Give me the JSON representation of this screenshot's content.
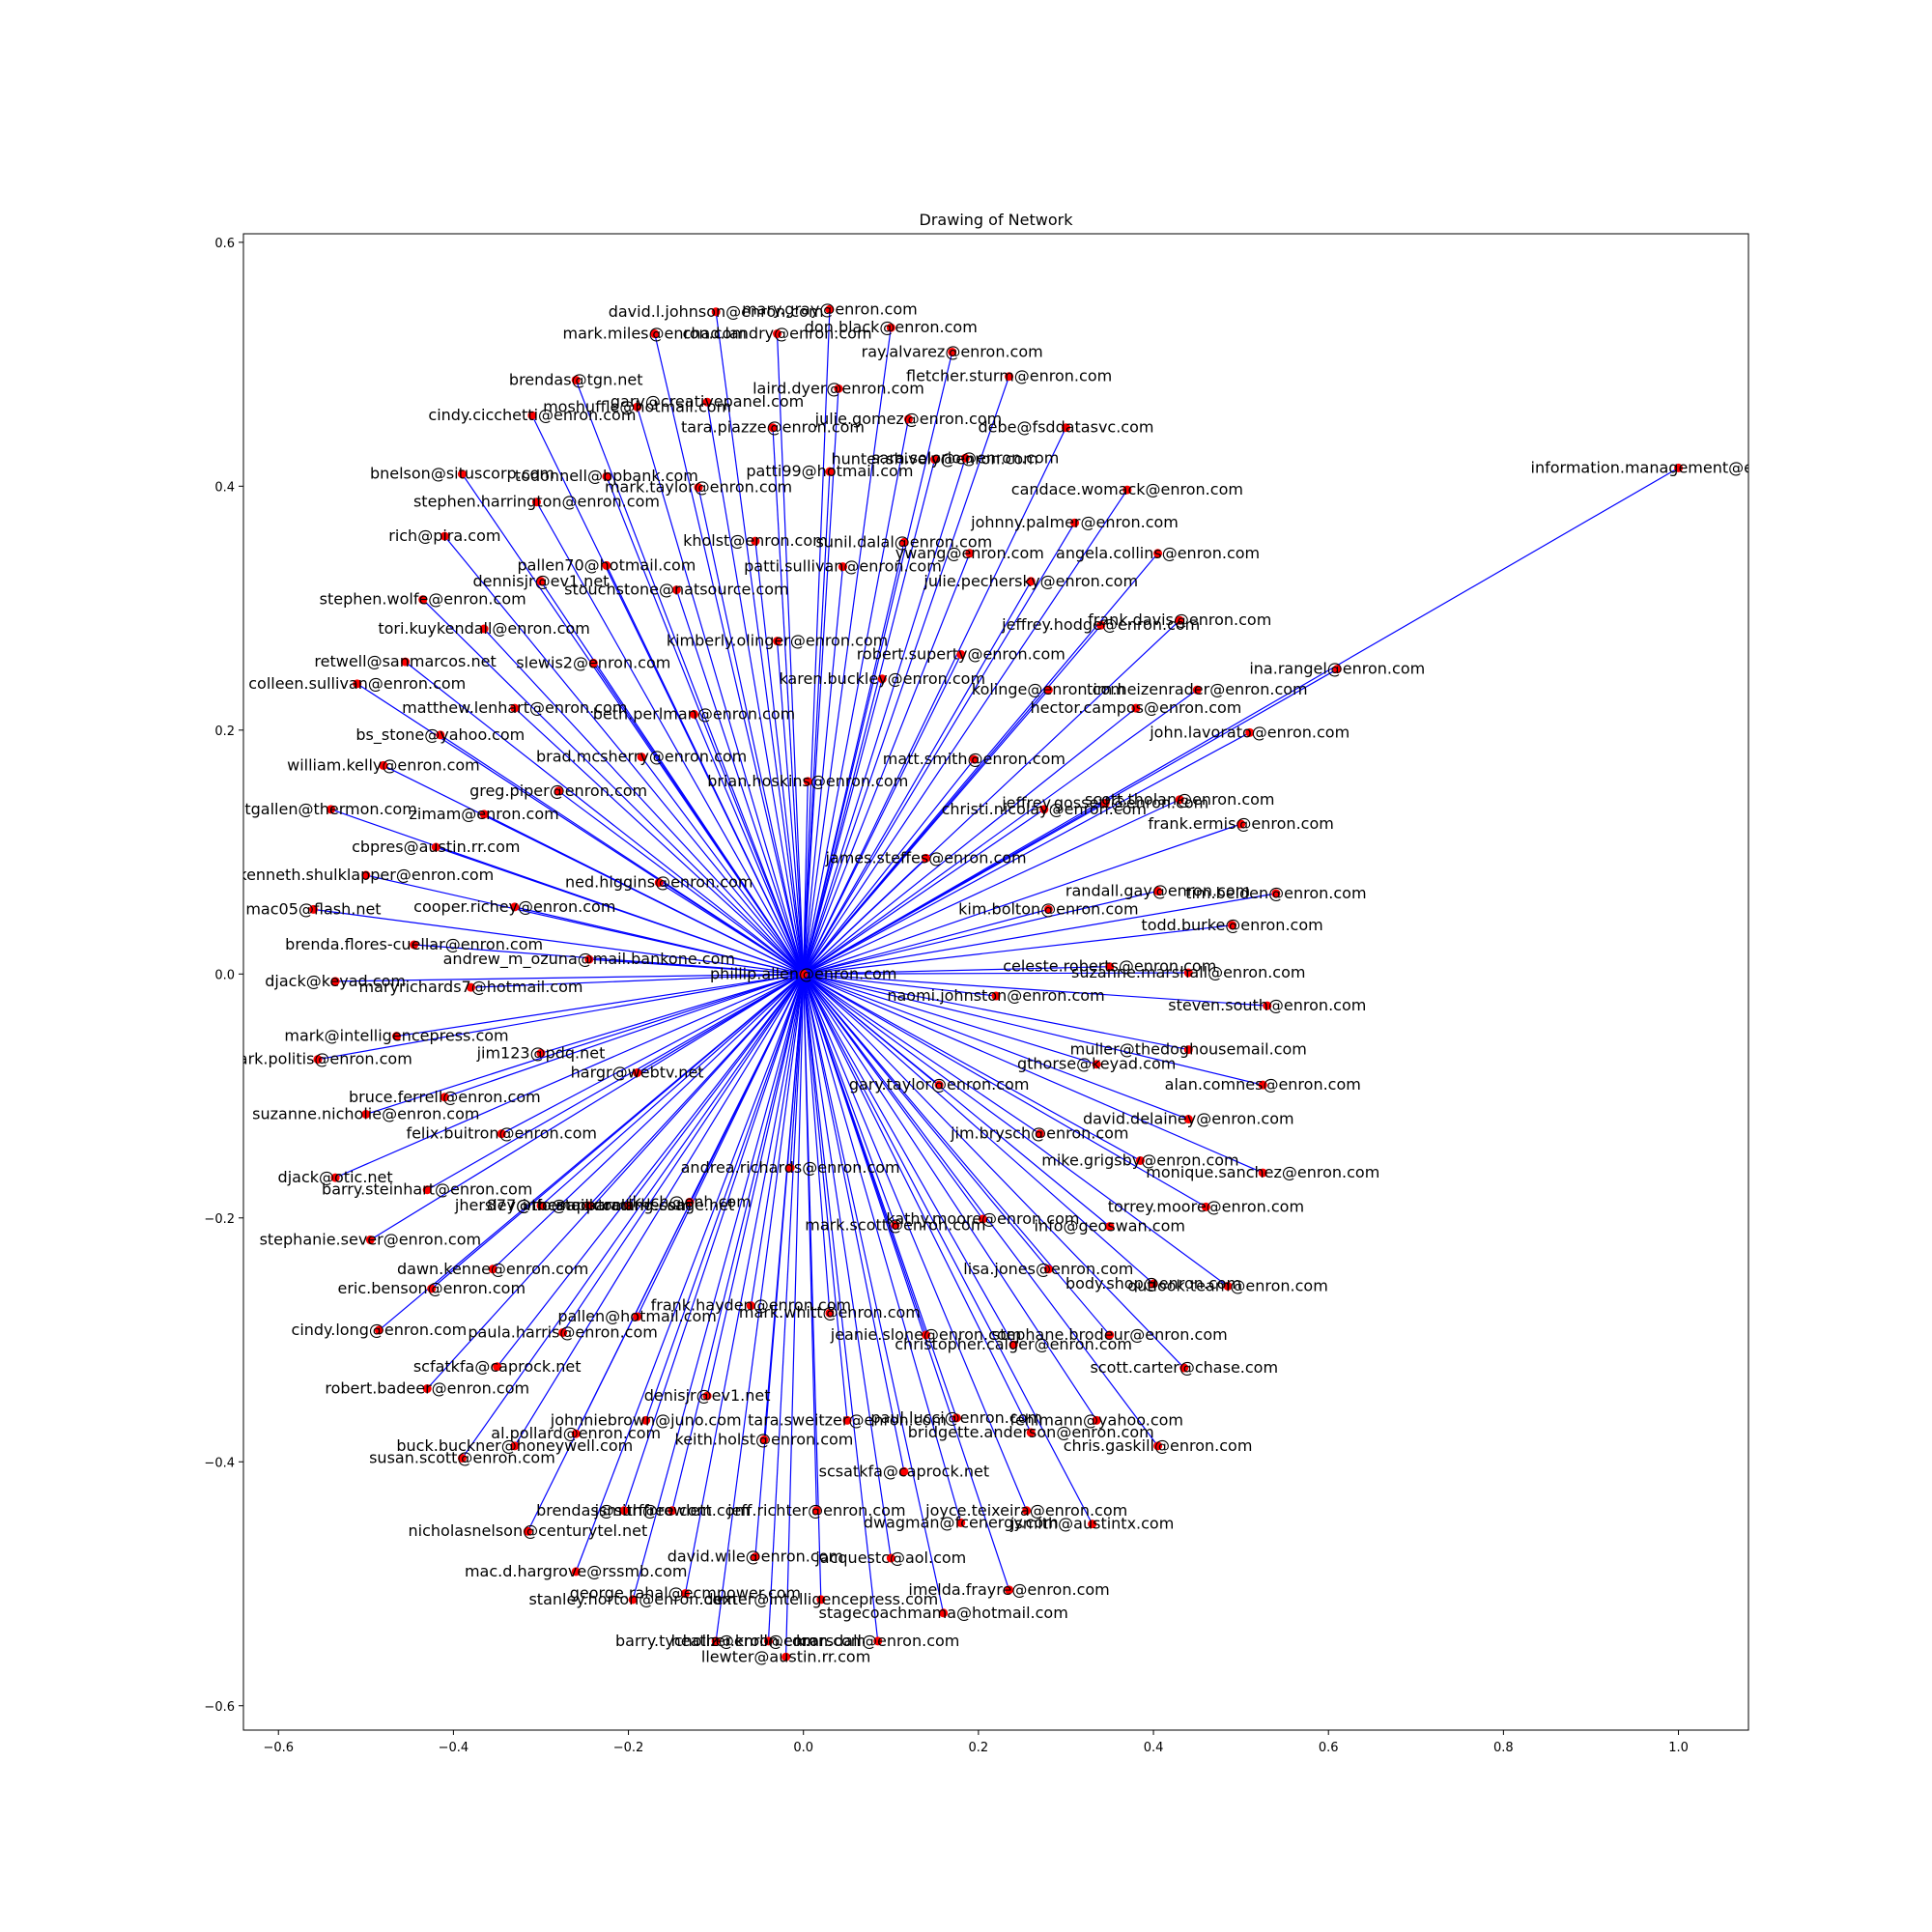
{
  "chart_data": {
    "type": "network",
    "title": "Drawing of Network",
    "xlim": [
      -0.64,
      1.08
    ],
    "ylim": [
      -0.62,
      0.607
    ],
    "x_ticks": [
      -0.6,
      -0.4,
      -0.2,
      0.0,
      0.2,
      0.4,
      0.6,
      0.8,
      1.0
    ],
    "x_tick_labels": [
      "−0.6",
      "−0.4",
      "−0.2",
      "0.0",
      "0.2",
      "0.4",
      "0.6",
      "0.8",
      "1.0"
    ],
    "y_ticks": [
      -0.6,
      -0.4,
      -0.2,
      0.0,
      0.2,
      0.4,
      0.6
    ],
    "y_tick_labels": [
      "−0.6",
      "−0.4",
      "−0.2",
      "0.0",
      "0.2",
      "0.4",
      "0.6"
    ],
    "grid": false,
    "node_color": "#ff0000",
    "edge_color": "#0000ff",
    "center": {
      "label": "phillip.allen@enron.com",
      "x": 0.0,
      "y": 0.0
    },
    "nodes": [
      {
        "label": "david.l.johnson@enron.com",
        "x": -0.1,
        "y": 0.543
      },
      {
        "label": "mary.gray@enron.com",
        "x": 0.03,
        "y": 0.545
      },
      {
        "label": "mark.miles@enron.com",
        "x": -0.17,
        "y": 0.525
      },
      {
        "label": "chad.landry@enron.com",
        "x": -0.03,
        "y": 0.525
      },
      {
        "label": "don.black@enron.com",
        "x": 0.1,
        "y": 0.53
      },
      {
        "label": "ray.alvarez@enron.com",
        "x": 0.17,
        "y": 0.51
      },
      {
        "label": "brendas@tgn.net",
        "x": -0.26,
        "y": 0.487
      },
      {
        "label": "fletcher.sturm@enron.com",
        "x": 0.235,
        "y": 0.49
      },
      {
        "label": "laird.dyer@enron.com",
        "x": 0.04,
        "y": 0.48
      },
      {
        "label": "gary@creativepanel.com",
        "x": -0.11,
        "y": 0.469
      },
      {
        "label": "moshuffle@hotmail.com",
        "x": -0.19,
        "y": 0.465
      },
      {
        "label": "cindy.cicchetti@enron.com",
        "x": -0.31,
        "y": 0.458
      },
      {
        "label": "julie.gomez@enron.com",
        "x": 0.12,
        "y": 0.455
      },
      {
        "label": "tara.piazze@enron.com",
        "x": -0.035,
        "y": 0.448
      },
      {
        "label": "debe@fsddatasvc.com",
        "x": 0.3,
        "y": 0.448
      },
      {
        "label": "sara.solorio@enron.com",
        "x": 0.185,
        "y": 0.423
      },
      {
        "label": "hunter.shively@enron.com",
        "x": 0.15,
        "y": 0.422
      },
      {
        "label": "information.management@enron.com",
        "x": 1.0,
        "y": 0.415
      },
      {
        "label": "patti99@hotmail.com",
        "x": 0.03,
        "y": 0.412
      },
      {
        "label": "bnelson@situscorp.com",
        "x": -0.39,
        "y": 0.41
      },
      {
        "label": "todonnell@bpbank.com",
        "x": -0.225,
        "y": 0.408
      },
      {
        "label": "mark.taylor@enron.com",
        "x": -0.12,
        "y": 0.399
      },
      {
        "label": "candace.womack@enron.com",
        "x": 0.37,
        "y": 0.397
      },
      {
        "label": "stephen.harrington@enron.com",
        "x": -0.305,
        "y": 0.387
      },
      {
        "label": "johnny.palmer@enron.com",
        "x": 0.31,
        "y": 0.37
      },
      {
        "label": "rich@pira.com",
        "x": -0.41,
        "y": 0.359
      },
      {
        "label": "kholst@enron.com",
        "x": -0.055,
        "y": 0.355
      },
      {
        "label": "sunil.dalal@enron.com",
        "x": 0.115,
        "y": 0.354
      },
      {
        "label": "ywang@enron.com",
        "x": 0.19,
        "y": 0.345
      },
      {
        "label": "angela.collins@enron.com",
        "x": 0.405,
        "y": 0.345
      },
      {
        "label": "patti.sullivan@enron.com",
        "x": 0.045,
        "y": 0.334
      },
      {
        "label": "pallen70@hotmail.com",
        "x": -0.225,
        "y": 0.335
      },
      {
        "label": "dennisjr@ev1.net",
        "x": -0.3,
        "y": 0.322
      },
      {
        "label": "julie.pechersky@enron.com",
        "x": 0.26,
        "y": 0.322
      },
      {
        "label": "stouchstone@natsource.com",
        "x": -0.145,
        "y": 0.315
      },
      {
        "label": "stephen.wolfe@enron.com",
        "x": -0.435,
        "y": 0.307
      },
      {
        "label": "frank.davis@enron.com",
        "x": 0.43,
        "y": 0.29
      },
      {
        "label": "jeffrey.hodge@enron.com",
        "x": 0.34,
        "y": 0.286
      },
      {
        "label": "tori.kuykendall@enron.com",
        "x": -0.365,
        "y": 0.283
      },
      {
        "label": "kimberly.olinger@enron.com",
        "x": -0.03,
        "y": 0.273
      },
      {
        "label": "robert.superty@enron.com",
        "x": 0.18,
        "y": 0.262
      },
      {
        "label": "retwell@sanmarcos.net",
        "x": -0.455,
        "y": 0.256
      },
      {
        "label": "slewis2@enron.com",
        "x": -0.24,
        "y": 0.255
      },
      {
        "label": "ina.rangel@enron.com",
        "x": 0.61,
        "y": 0.25
      },
      {
        "label": "karen.buckley@enron.com",
        "x": 0.09,
        "y": 0.242
      },
      {
        "label": "colleen.sullivan@enron.com",
        "x": -0.51,
        "y": 0.238
      },
      {
        "label": "kolinge@enron.com",
        "x": 0.28,
        "y": 0.233
      },
      {
        "label": "tim.heizenrader@enron.com",
        "x": 0.45,
        "y": 0.233
      },
      {
        "label": "hector.campos@enron.com",
        "x": 0.38,
        "y": 0.218
      },
      {
        "label": "matthew.lenhart@enron.com",
        "x": -0.33,
        "y": 0.218
      },
      {
        "label": "beth.perlman@enron.com",
        "x": -0.125,
        "y": 0.213
      },
      {
        "label": "john.lavorato@enron.com",
        "x": 0.51,
        "y": 0.198
      },
      {
        "label": "bs_stone@yahoo.com",
        "x": -0.415,
        "y": 0.196
      },
      {
        "label": "brad.mcsherry@enron.com",
        "x": -0.185,
        "y": 0.178
      },
      {
        "label": "matt.smith@enron.com",
        "x": 0.195,
        "y": 0.176
      },
      {
        "label": "william.kelly@enron.com",
        "x": -0.48,
        "y": 0.171
      },
      {
        "label": "brian.hoskins@enron.com",
        "x": 0.005,
        "y": 0.158
      },
      {
        "label": "greg.piper@enron.com",
        "x": -0.28,
        "y": 0.15
      },
      {
        "label": "scott.tholan@enron.com",
        "x": 0.43,
        "y": 0.143
      },
      {
        "label": "jeffrey.gossett@enron.com",
        "x": 0.345,
        "y": 0.14
      },
      {
        "label": "christi.nicolay@enron.com",
        "x": 0.275,
        "y": 0.135
      },
      {
        "label": "tgallen@thermon.com",
        "x": -0.54,
        "y": 0.135
      },
      {
        "label": "zimam@enron.com",
        "x": -0.365,
        "y": 0.131
      },
      {
        "label": "frank.ermis@enron.com",
        "x": 0.5,
        "y": 0.123
      },
      {
        "label": "cbpres@austin.rr.com",
        "x": -0.42,
        "y": 0.104
      },
      {
        "label": "james.steffes@enron.com",
        "x": 0.14,
        "y": 0.095
      },
      {
        "label": "kenneth.shulklapper@enron.com",
        "x": -0.5,
        "y": 0.081
      },
      {
        "label": "ned.higgins@enron.com",
        "x": -0.165,
        "y": 0.075
      },
      {
        "label": "randall.gay@enron.com",
        "x": 0.405,
        "y": 0.068
      },
      {
        "label": "tim.belden@enron.com",
        "x": 0.54,
        "y": 0.066
      },
      {
        "label": "cooper.richey@enron.com",
        "x": -0.33,
        "y": 0.055
      },
      {
        "label": "kim.bolton@enron.com",
        "x": 0.28,
        "y": 0.053
      },
      {
        "label": "mac05@flash.net",
        "x": -0.56,
        "y": 0.053
      },
      {
        "label": "todd.burke@enron.com",
        "x": 0.49,
        "y": 0.04
      },
      {
        "label": "brenda.flores-cuellar@enron.com",
        "x": -0.445,
        "y": 0.024
      },
      {
        "label": "andrew_m_ozuna@mail.bankone.com",
        "x": -0.245,
        "y": 0.012
      },
      {
        "label": "celeste.roberts@enron.com",
        "x": 0.35,
        "y": 0.006
      },
      {
        "label": "suzanne.marshall@enron.com",
        "x": 0.44,
        "y": 0.001
      },
      {
        "label": "djack@keyad.com",
        "x": -0.535,
        "y": -0.006
      },
      {
        "label": "maryrichards7@hotmail.com",
        "x": -0.38,
        "y": -0.011
      },
      {
        "label": "naomi.johnston@enron.com",
        "x": 0.22,
        "y": -0.018
      },
      {
        "label": "steven.south@enron.com",
        "x": 0.53,
        "y": -0.026
      },
      {
        "label": "mark@intelligencepress.com",
        "x": -0.465,
        "y": -0.051
      },
      {
        "label": "muller@thedoghousemail.com",
        "x": 0.44,
        "y": -0.062
      },
      {
        "label": "jim123@pdq.net",
        "x": -0.3,
        "y": -0.065
      },
      {
        "label": "mark.politis@enron.com",
        "x": -0.555,
        "y": -0.07
      },
      {
        "label": "gthorse@keyad.com",
        "x": 0.335,
        "y": -0.074
      },
      {
        "label": "hargr@webtv.net",
        "x": -0.19,
        "y": -0.081
      },
      {
        "label": "gary.taylor@enron.com",
        "x": 0.155,
        "y": -0.091
      },
      {
        "label": "alan.comnes@enron.com",
        "x": 0.525,
        "y": -0.091
      },
      {
        "label": "bruce.ferrell@enron.com",
        "x": -0.41,
        "y": -0.101
      },
      {
        "label": "suzanne.nicholie@enron.com",
        "x": -0.5,
        "y": -0.115
      },
      {
        "label": "david.delainey@enron.com",
        "x": 0.44,
        "y": -0.119
      },
      {
        "label": "felix.buitron@enron.com",
        "x": -0.345,
        "y": -0.131
      },
      {
        "label": "jim.brysch@enron.com",
        "x": 0.27,
        "y": -0.131
      },
      {
        "label": "mike.grigsby@enron.com",
        "x": 0.385,
        "y": -0.153
      },
      {
        "label": "andrea.richards@enron.com",
        "x": -0.015,
        "y": -0.159
      },
      {
        "label": "monique.sanchez@enron.com",
        "x": 0.525,
        "y": -0.163
      },
      {
        "label": "djack@otic.net",
        "x": -0.535,
        "y": -0.167
      },
      {
        "label": "barry.steinhart@enron.com",
        "x": -0.43,
        "y": -0.177
      },
      {
        "label": "jkuch@enh.com",
        "x": -0.13,
        "y": -0.187
      },
      {
        "label": "jhersley@rbcmail.com",
        "x": -0.3,
        "y": -0.19
      },
      {
        "label": "877@thestocktrading.com",
        "x": -0.245,
        "y": -0.19
      },
      {
        "label": "info@apparelamessage.net",
        "x": -0.2,
        "y": -0.19
      },
      {
        "label": "torrey.moore@enron.com",
        "x": 0.46,
        "y": -0.191
      },
      {
        "label": "kathy.moore@enron.com",
        "x": 0.205,
        "y": -0.201
      },
      {
        "label": "mark.scott@enron.com",
        "x": 0.105,
        "y": -0.206
      },
      {
        "label": "info@geoswan.com",
        "x": 0.35,
        "y": -0.207
      },
      {
        "label": "stephanie.sever@enron.com",
        "x": -0.495,
        "y": -0.218
      },
      {
        "label": "dawn.kenne@enron.com",
        "x": -0.355,
        "y": -0.242
      },
      {
        "label": "lisa.jones@enron.com",
        "x": 0.28,
        "y": -0.242
      },
      {
        "label": "body.shop@enron.com",
        "x": 0.4,
        "y": -0.254
      },
      {
        "label": "outlook.team@enron.com",
        "x": 0.485,
        "y": -0.256
      },
      {
        "label": "eric.benson@enron.com",
        "x": -0.425,
        "y": -0.258
      },
      {
        "label": "frank.hayden@enron.com",
        "x": -0.06,
        "y": -0.272
      },
      {
        "label": "mark.whitt@enron.com",
        "x": 0.03,
        "y": -0.278
      },
      {
        "label": "pallen@hotmail.com",
        "x": -0.19,
        "y": -0.281
      },
      {
        "label": "cindy.long@enron.com",
        "x": -0.485,
        "y": -0.292
      },
      {
        "label": "paula.harris@enron.com",
        "x": -0.275,
        "y": -0.294
      },
      {
        "label": "jeanie.slone@enron.com",
        "x": 0.14,
        "y": -0.296
      },
      {
        "label": "stephane.brodeur@enron.com",
        "x": 0.35,
        "y": -0.296
      },
      {
        "label": "christopher.calger@enron.com",
        "x": 0.24,
        "y": -0.304
      },
      {
        "label": "scfatkfa@caprock.net",
        "x": -0.35,
        "y": -0.322
      },
      {
        "label": "scott.carter@chase.com",
        "x": 0.435,
        "y": -0.323
      },
      {
        "label": "robert.badeer@enron.com",
        "x": -0.43,
        "y": -0.34
      },
      {
        "label": "denisjr@ev1.net",
        "x": -0.11,
        "y": -0.346
      },
      {
        "label": "johnniebrown@juno.com",
        "x": -0.18,
        "y": -0.366
      },
      {
        "label": "tara.sweitzer@enron.com",
        "x": 0.05,
        "y": -0.366
      },
      {
        "label": "paul.lucci@enron.com",
        "x": 0.175,
        "y": -0.364
      },
      {
        "label": "fehlmann@yahoo.com",
        "x": 0.335,
        "y": -0.366
      },
      {
        "label": "bridgette.anderson@enron.com",
        "x": 0.26,
        "y": -0.376
      },
      {
        "label": "al.pollard@enron.com",
        "x": -0.26,
        "y": -0.377
      },
      {
        "label": "keith.holst@enron.com",
        "x": -0.045,
        "y": -0.382
      },
      {
        "label": "chris.gaskill@enron.com",
        "x": 0.405,
        "y": -0.387
      },
      {
        "label": "buck.buckner@honeywell.com",
        "x": -0.33,
        "y": -0.387
      },
      {
        "label": "susan.scott@enron.com",
        "x": -0.39,
        "y": -0.397
      },
      {
        "label": "scsatkfa@caprock.net",
        "x": 0.115,
        "y": -0.408
      },
      {
        "label": "brendas@surffree.com",
        "x": -0.205,
        "y": -0.44
      },
      {
        "label": "jsmith@rowlett.com",
        "x": -0.15,
        "y": -0.44
      },
      {
        "label": "jeff.richter@enron.com",
        "x": 0.015,
        "y": -0.44
      },
      {
        "label": "joyce.teixeira@enron.com",
        "x": 0.255,
        "y": -0.44
      },
      {
        "label": "dwagman@fcenergy.com",
        "x": 0.18,
        "y": -0.45
      },
      {
        "label": "jsmith@austintx.com",
        "x": 0.33,
        "y": -0.451
      },
      {
        "label": "nicholasnelson@centurytel.net",
        "x": -0.315,
        "y": -0.457
      },
      {
        "label": "david.wile@enron.com",
        "x": -0.055,
        "y": -0.478
      },
      {
        "label": "jacquestc@aol.com",
        "x": 0.1,
        "y": -0.479
      },
      {
        "label": "mac.d.hargrove@rssmb.com",
        "x": -0.26,
        "y": -0.49
      },
      {
        "label": "imelda.frayre@enron.com",
        "x": 0.235,
        "y": -0.505
      },
      {
        "label": "george.rahal@ecmpower.com",
        "x": -0.135,
        "y": -0.508
      },
      {
        "label": "stanley.horton@enron.com",
        "x": -0.195,
        "y": -0.513
      },
      {
        "label": "dexter@intelligencepress.com",
        "x": 0.02,
        "y": -0.513
      },
      {
        "label": "stagecoachmama@hotmail.com",
        "x": 0.16,
        "y": -0.524
      },
      {
        "label": "barry.tycholiz@enron.com",
        "x": -0.1,
        "y": -0.547
      },
      {
        "label": "heather.kroll@enron.com",
        "x": -0.04,
        "y": -0.547
      },
      {
        "label": "k.arsdall@enron.com",
        "x": 0.085,
        "y": -0.547
      },
      {
        "label": "llewter@austin.rr.com",
        "x": -0.02,
        "y": -0.56
      }
    ]
  }
}
